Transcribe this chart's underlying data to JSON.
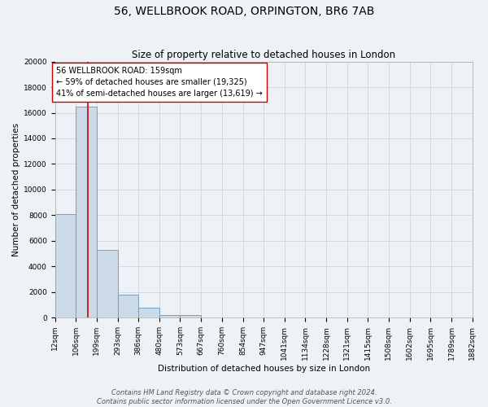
{
  "title": "56, WELLBROOK ROAD, ORPINGTON, BR6 7AB",
  "subtitle": "Size of property relative to detached houses in London",
  "xlabel": "Distribution of detached houses by size in London",
  "ylabel": "Number of detached properties",
  "bin_labels": [
    "12sqm",
    "106sqm",
    "199sqm",
    "293sqm",
    "386sqm",
    "480sqm",
    "573sqm",
    "667sqm",
    "760sqm",
    "854sqm",
    "947sqm",
    "1041sqm",
    "1134sqm",
    "1228sqm",
    "1321sqm",
    "1415sqm",
    "1508sqm",
    "1602sqm",
    "1695sqm",
    "1789sqm",
    "1882sqm"
  ],
  "bar_values": [
    8100,
    16500,
    5300,
    1800,
    750,
    220,
    200,
    0,
    0,
    0,
    0,
    0,
    0,
    0,
    0,
    0,
    0,
    0,
    0,
    0
  ],
  "bar_color": "#ccd9e8",
  "bar_edge_color": "#6699bb",
  "ylim": [
    0,
    20000
  ],
  "yticks": [
    0,
    2000,
    4000,
    6000,
    8000,
    10000,
    12000,
    14000,
    16000,
    18000,
    20000
  ],
  "bin_edges": [
    12,
    106,
    199,
    293,
    386,
    480,
    573,
    667,
    760,
    854,
    947,
    1041,
    1134,
    1228,
    1321,
    1415,
    1508,
    1602,
    1695,
    1789,
    1882
  ],
  "vline_x": 159,
  "vline_color": "#cc0000",
  "annotation_text": "56 WELLBROOK ROAD: 159sqm\n← 59% of detached houses are smaller (19,325)\n41% of semi-detached houses are larger (13,619) →",
  "annotation_box_color": "#ffffff",
  "annotation_box_edge": "#cc0000",
  "footer_line1": "Contains HM Land Registry data © Crown copyright and database right 2024.",
  "footer_line2": "Contains public sector information licensed under the Open Government Licence v3.0.",
  "background_color": "#eef2f7",
  "grid_color": "#c8d0dc",
  "title_fontsize": 10,
  "subtitle_fontsize": 8.5,
  "axis_label_fontsize": 7.5,
  "tick_fontsize": 6.5,
  "annotation_fontsize": 7.0,
  "footer_fontsize": 6.0
}
